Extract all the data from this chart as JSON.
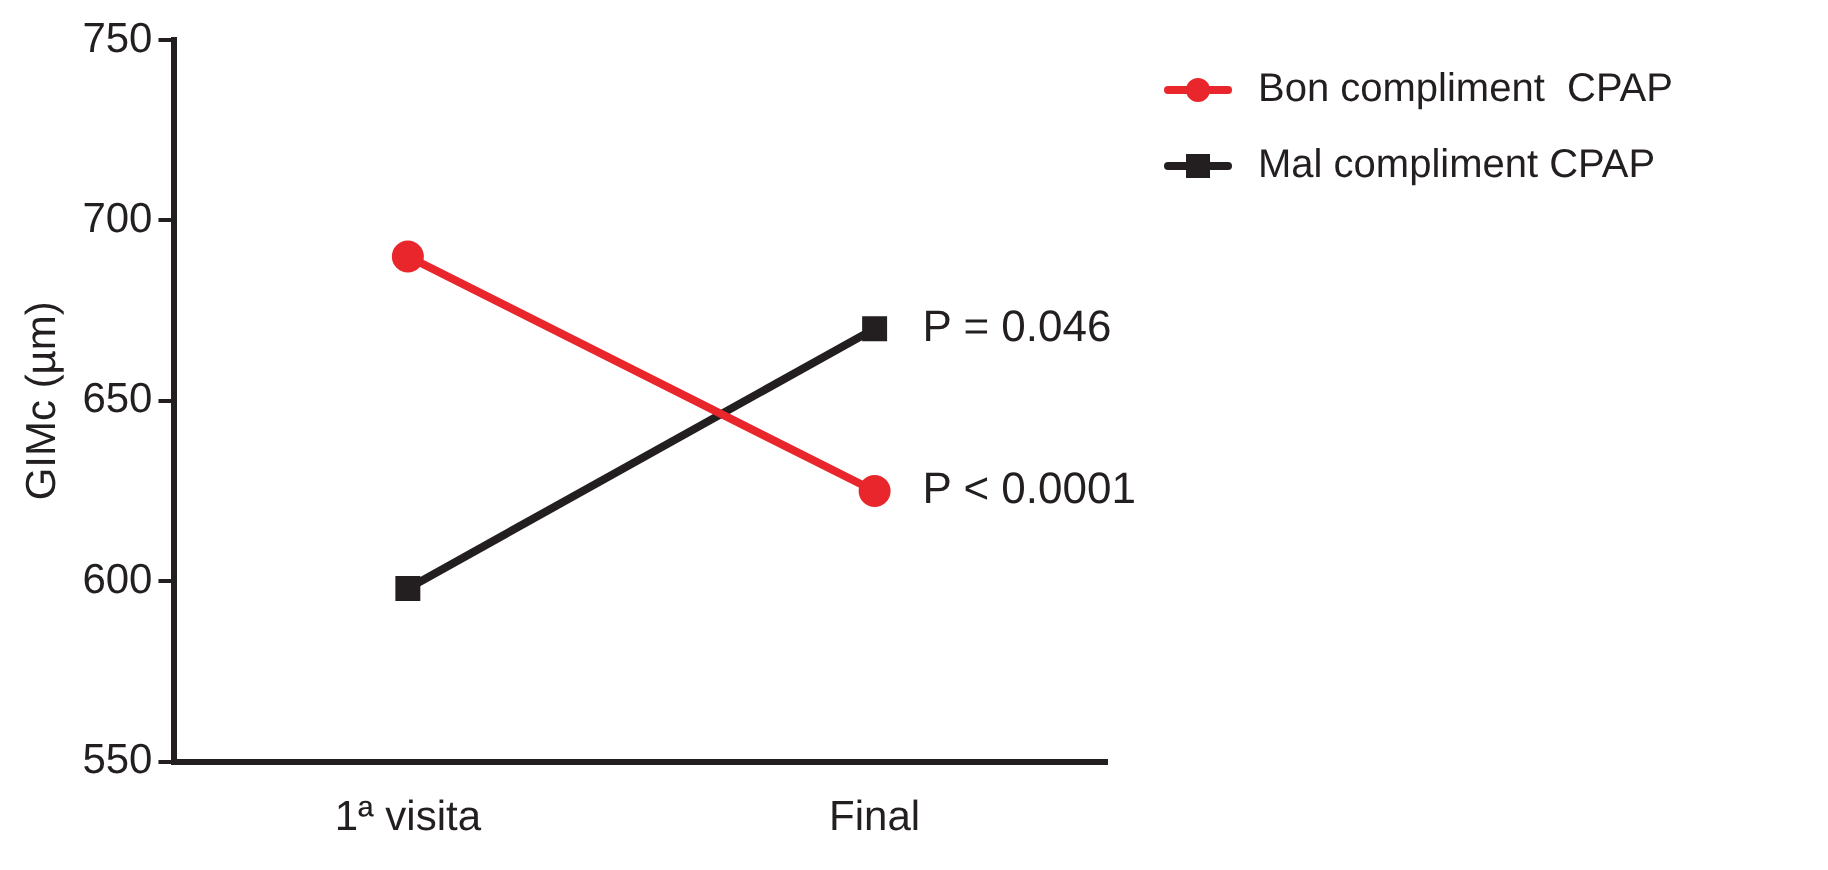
{
  "chart_data": {
    "type": "line",
    "ylabel": "GIMc (µm)",
    "categories": [
      "1ª visita",
      "Final"
    ],
    "series": [
      {
        "name": "Bon compliment  CPAP",
        "color": "#e8262b",
        "values": [
          690,
          625
        ],
        "marker": "circle"
      },
      {
        "name": "Mal compliment CPAP",
        "color": "#231f20",
        "values": [
          598,
          670
        ],
        "marker": "square"
      }
    ],
    "ylim": [
      550,
      750
    ],
    "yticks": [
      550,
      600,
      650,
      700,
      750
    ],
    "grid": false,
    "legend": "top right",
    "line_style": "solid",
    "annotations": [
      {
        "text": "P = 0.046",
        "x": "Final",
        "y": 670
      },
      {
        "text": "P < 0.0001",
        "x": "Final",
        "y": 625
      }
    ]
  }
}
